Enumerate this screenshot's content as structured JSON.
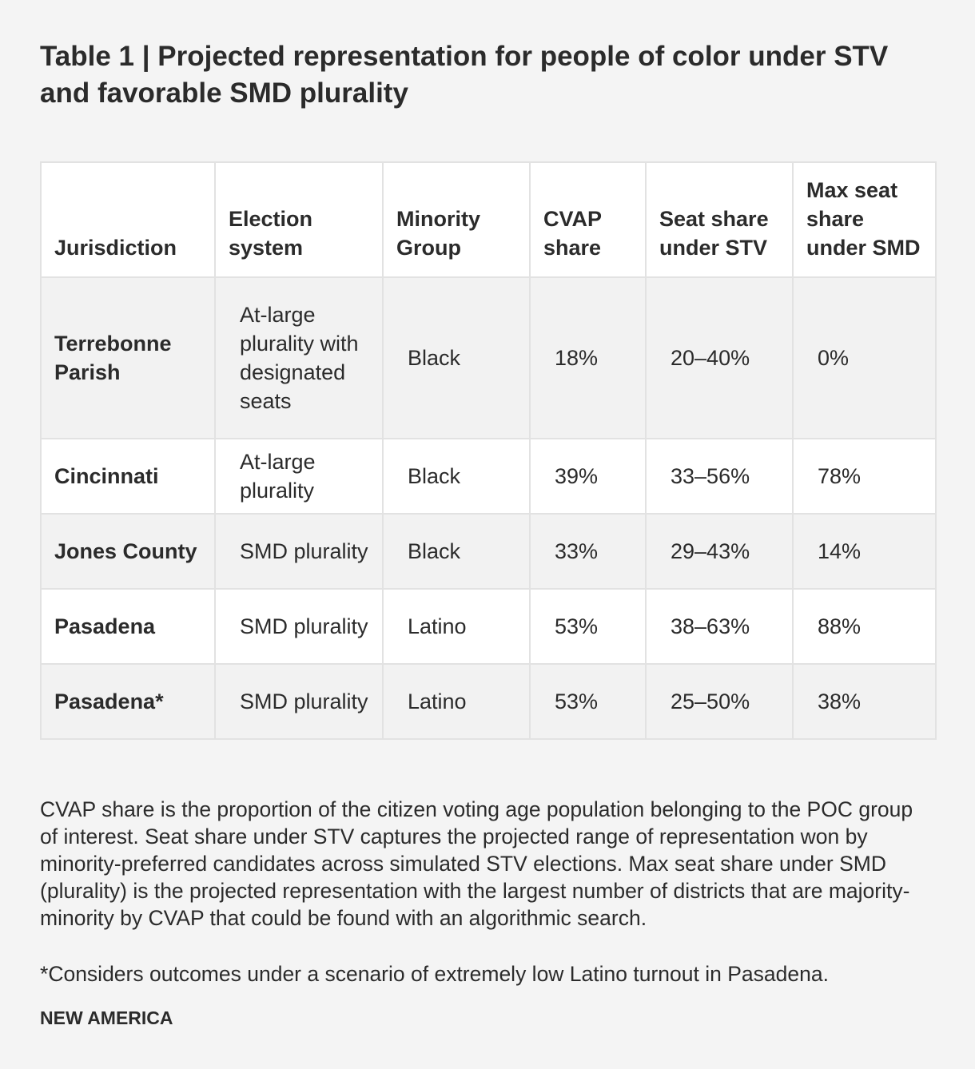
{
  "title": "Table 1 | Projected representation for people of color under STV and favorable SMD plurality",
  "table": {
    "headers": {
      "jurisdiction": "Jurisdiction",
      "system": "Election system",
      "group": "Minority Group",
      "cvap": "CVAP share",
      "stv": "Seat share under STV",
      "smd": "Max seat share under SMD"
    },
    "rows": [
      {
        "jurisdiction": "Terrebonne Parish",
        "system": "At-large plurality with designated seats",
        "group": "Black",
        "cvap": "18%",
        "stv": "20–40%",
        "smd": "0%"
      },
      {
        "jurisdiction": "Cincinnati",
        "system": "At-large plurality",
        "group": "Black",
        "cvap": "39%",
        "stv": "33–56%",
        "smd": "78%"
      },
      {
        "jurisdiction": "Jones County",
        "system": "SMD plurality",
        "group": "Black",
        "cvap": "33%",
        "stv": "29–43%",
        "smd": "14%"
      },
      {
        "jurisdiction": "Pasadena",
        "system": "SMD plurality",
        "group": "Latino",
        "cvap": "53%",
        "stv": "38–63%",
        "smd": "88%"
      },
      {
        "jurisdiction": "Pasadena*",
        "system": "SMD plurality",
        "group": "Latino",
        "cvap": "53%",
        "stv": "25–50%",
        "smd": "38%"
      }
    ]
  },
  "note": "CVAP share is the proportion of the citizen voting age population belonging to the POC group of interest. Seat share under STV captures the projected range of representation won by minority-preferred candidates across simulated STV elections. Max seat share under SMD (plurality) is the projected representation with the largest number of districts that are majority-minority by CVAP that could be found with an algorithmic search.",
  "footnote": "*Considers outcomes under a scenario of extremely low Latino turnout in Pasadena.",
  "brand": "NEW AMERICA"
}
